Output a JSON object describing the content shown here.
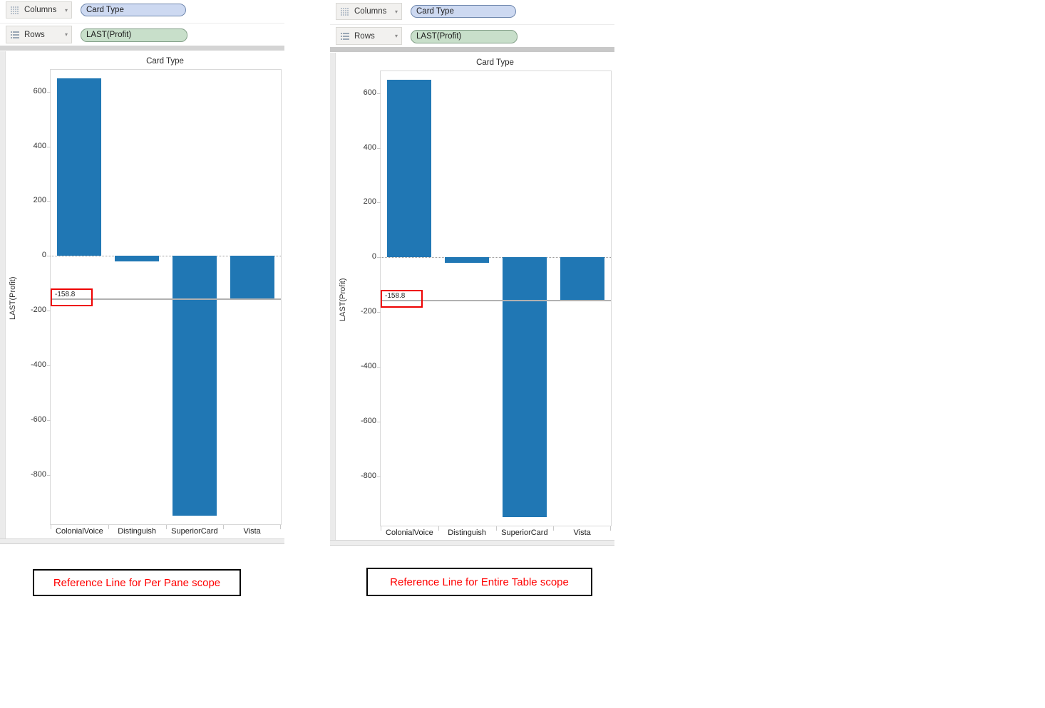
{
  "panels": [
    {
      "columns_shelf": {
        "label": "Columns",
        "pill": "Card Type"
      },
      "rows_shelf": {
        "label": "Rows",
        "pill": "LAST(Profit)"
      },
      "caption": "Reference Line for Per Pane scope"
    },
    {
      "columns_shelf": {
        "label": "Columns",
        "pill": "Card Type"
      },
      "rows_shelf": {
        "label": "Rows",
        "pill": "LAST(Profit)"
      },
      "caption": "Reference Line for Entire Table scope"
    }
  ],
  "chart_data": [
    {
      "type": "bar",
      "title": "Card Type",
      "categories": [
        "ColonialVoice",
        "Distinguish",
        "SuperiorCard",
        "Vista"
      ],
      "values": [
        650,
        -20,
        -950,
        -160
      ],
      "xlabel": "",
      "ylabel": "LAST(Profit)",
      "ylim": [
        -980,
        680
      ],
      "yticks": [
        600,
        400,
        200,
        0,
        -200,
        -400,
        -600,
        -800
      ],
      "zero_line_dotted": true,
      "grid": false,
      "legend": false,
      "reference_line": {
        "value": -158.8,
        "label": "-158.8",
        "scope": "Per Pane"
      }
    },
    {
      "type": "bar",
      "title": "Card Type",
      "categories": [
        "ColonialVoice",
        "Distinguish",
        "SuperiorCard",
        "Vista"
      ],
      "values": [
        650,
        -20,
        -950,
        -160
      ],
      "xlabel": "",
      "ylabel": "LAST(Profit)",
      "ylim": [
        -980,
        680
      ],
      "yticks": [
        600,
        400,
        200,
        0,
        -200,
        -400,
        -600,
        -800
      ],
      "zero_line_dotted": true,
      "grid": false,
      "legend": false,
      "reference_line": {
        "value": -158.8,
        "label": "-158.8",
        "scope": "Entire Table"
      }
    }
  ],
  "colors": {
    "bar": "#2077b4",
    "reference_line": "#b1b1b1",
    "annotation_border": "#ee0000",
    "caption_text": "#ff0000",
    "dimension_pill_bg": "#cdd9f1",
    "measure_pill_bg": "#c8dfca"
  }
}
